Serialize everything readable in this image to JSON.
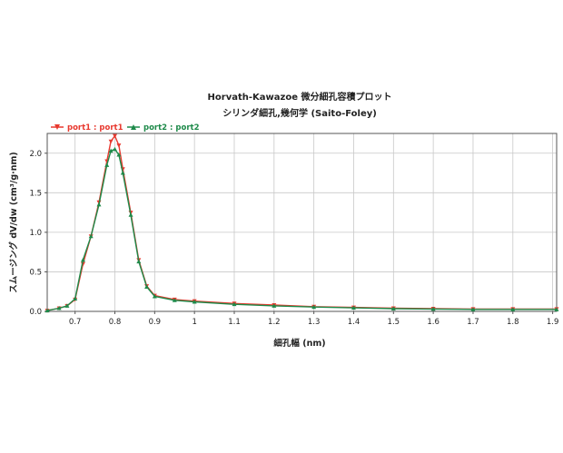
{
  "chart_data": {
    "type": "line",
    "title": "Horvath-Kawazoe 微分細孔容積プロット",
    "subtitle": "シリンダ細孔,幾何学 (Saito-Foley)",
    "xlabel": "細孔幅 (nm)",
    "ylabel": "スムージング dV/dw (cm³/g·nm)",
    "xlim": [
      0.63,
      1.91
    ],
    "ylim": [
      0,
      2.25
    ],
    "x_ticks": [
      "0.7",
      "0.8",
      "0.9",
      "1",
      "1.1",
      "1.2",
      "1.3",
      "1.4",
      "1.5",
      "1.6",
      "1.7",
      "1.8",
      "1.9"
    ],
    "x_tick_values": [
      0.7,
      0.8,
      0.9,
      1.0,
      1.1,
      1.2,
      1.3,
      1.4,
      1.5,
      1.6,
      1.7,
      1.8,
      1.9
    ],
    "y_ticks": [
      "0.0",
      "0.5",
      "1.0",
      "1.5",
      "2.0"
    ],
    "y_tick_values": [
      0,
      0.5,
      1.0,
      1.5,
      2.0
    ],
    "grid": true,
    "legend_position": "top-left",
    "series": [
      {
        "name": "port1 : port1",
        "color": "#e8392f",
        "x": [
          0.63,
          0.66,
          0.68,
          0.7,
          0.72,
          0.74,
          0.76,
          0.78,
          0.79,
          0.8,
          0.81,
          0.82,
          0.84,
          0.86,
          0.88,
          0.9,
          0.95,
          1.0,
          1.1,
          1.2,
          1.3,
          1.4,
          1.5,
          1.6,
          1.7,
          1.8,
          1.91
        ],
        "values": [
          0.01,
          0.04,
          0.07,
          0.15,
          0.6,
          0.95,
          1.38,
          1.9,
          2.15,
          2.22,
          2.1,
          1.8,
          1.25,
          0.65,
          0.32,
          0.2,
          0.15,
          0.13,
          0.1,
          0.08,
          0.06,
          0.05,
          0.04,
          0.035,
          0.03,
          0.03,
          0.03
        ]
      },
      {
        "name": "port2 : port2",
        "color": "#1e8a4a",
        "x": [
          0.63,
          0.66,
          0.68,
          0.7,
          0.72,
          0.74,
          0.76,
          0.78,
          0.79,
          0.8,
          0.81,
          0.82,
          0.84,
          0.86,
          0.88,
          0.9,
          0.95,
          1.0,
          1.1,
          1.2,
          1.3,
          1.4,
          1.5,
          1.6,
          1.7,
          1.8,
          1.91
        ],
        "values": [
          0.01,
          0.04,
          0.07,
          0.16,
          0.65,
          0.95,
          1.35,
          1.85,
          2.03,
          2.05,
          1.98,
          1.75,
          1.22,
          0.63,
          0.31,
          0.19,
          0.14,
          0.12,
          0.09,
          0.07,
          0.055,
          0.045,
          0.035,
          0.03,
          0.025,
          0.025,
          0.025
        ]
      }
    ]
  }
}
